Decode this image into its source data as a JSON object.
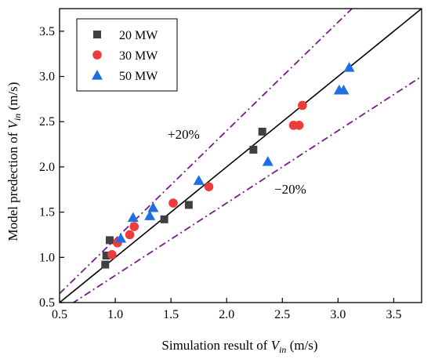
{
  "chart_data": {
    "type": "scatter",
    "xlabel": {
      "prefix": "Simulation result of ",
      "var": "V",
      "sub": "in",
      "suffix": " (m/s)"
    },
    "ylabel": {
      "prefix": "Model predection of ",
      "var": "V",
      "sub": "in",
      "suffix": " (m/s)"
    },
    "xlim": [
      0.5,
      3.75
    ],
    "ylim": [
      0.5,
      3.75
    ],
    "xticks": [
      "0.5",
      "1.0",
      "1.5",
      "2.0",
      "2.5",
      "3.0",
      "3.5"
    ],
    "yticks": [
      "0.5",
      "1.0",
      "1.5",
      "2.0",
      "2.5",
      "3.0",
      "3.5"
    ],
    "grid": false,
    "legend_position": "top-left",
    "series": [
      {
        "name": "20 MW",
        "marker": "square",
        "color": "#404040",
        "points": [
          [
            0.91,
            0.92
          ],
          [
            0.92,
            1.02
          ],
          [
            0.95,
            1.19
          ],
          [
            1.44,
            1.42
          ],
          [
            1.66,
            1.58
          ],
          [
            2.24,
            2.19
          ],
          [
            2.32,
            2.39
          ]
        ]
      },
      {
        "name": "30 MW",
        "marker": "circle",
        "color": "#ee3b3b",
        "points": [
          [
            0.97,
            1.03
          ],
          [
            1.02,
            1.16
          ],
          [
            1.13,
            1.25
          ],
          [
            1.17,
            1.34
          ],
          [
            1.52,
            1.6
          ],
          [
            1.84,
            1.78
          ],
          [
            2.6,
            2.46
          ],
          [
            2.65,
            2.46
          ],
          [
            2.68,
            2.68
          ]
        ]
      },
      {
        "name": "50 MW",
        "marker": "triangle",
        "color": "#1f6fe0",
        "points": [
          [
            1.05,
            1.21
          ],
          [
            1.16,
            1.44
          ],
          [
            1.31,
            1.46
          ],
          [
            1.34,
            1.55
          ],
          [
            1.75,
            1.85
          ],
          [
            2.37,
            2.06
          ],
          [
            3.01,
            2.85
          ],
          [
            3.05,
            2.85
          ],
          [
            3.1,
            3.1
          ]
        ]
      }
    ],
    "reference_lines": [
      {
        "slope": 1.0,
        "style": "solid",
        "color": "#000000"
      },
      {
        "slope": 1.2,
        "style": "dashdot",
        "color": "#7a1a8a"
      },
      {
        "slope": 0.8,
        "style": "dashdot",
        "color": "#7a1a8a"
      }
    ],
    "annotations": [
      "+20%",
      "−20%"
    ]
  }
}
